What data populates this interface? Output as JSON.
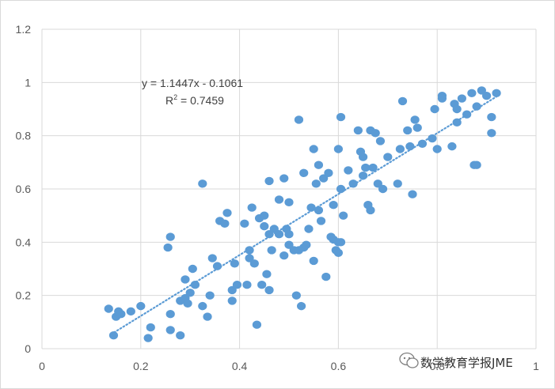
{
  "chart_data": {
    "type": "scatter",
    "title": "",
    "xlabel": "",
    "ylabel": "",
    "xlim": [
      0,
      1
    ],
    "ylim": [
      0,
      1.2
    ],
    "x_ticks": [
      "0",
      "0.2",
      "0.4",
      "0.6",
      "0.8",
      "1"
    ],
    "y_ticks": [
      "0",
      "0.2",
      "0.4",
      "0.6",
      "0.8",
      "1",
      "1.2"
    ],
    "grid": "horizontal and vertical major gridlines",
    "legend": "none",
    "marker_color": "#5b9bd5",
    "trendline": {
      "type": "linear",
      "style": "dotted",
      "color": "#5b9bd5",
      "slope": 1.1447,
      "intercept": -0.1061,
      "x_range": [
        0.14,
        0.92
      ]
    },
    "annotations": {
      "equation": "y = 1.1447x - 0.1061",
      "r_squared_prefix": "R",
      "r_squared_power": "2",
      "r_squared_value": " = 0.7459"
    },
    "points": [
      [
        0.135,
        0.15
      ],
      [
        0.145,
        0.05
      ],
      [
        0.15,
        0.12
      ],
      [
        0.155,
        0.14
      ],
      [
        0.16,
        0.13
      ],
      [
        0.18,
        0.14
      ],
      [
        0.2,
        0.16
      ],
      [
        0.215,
        0.04
      ],
      [
        0.22,
        0.08
      ],
      [
        0.255,
        0.38
      ],
      [
        0.26,
        0.42
      ],
      [
        0.26,
        0.13
      ],
      [
        0.26,
        0.07
      ],
      [
        0.28,
        0.18
      ],
      [
        0.28,
        0.05
      ],
      [
        0.29,
        0.26
      ],
      [
        0.29,
        0.19
      ],
      [
        0.295,
        0.17
      ],
      [
        0.3,
        0.21
      ],
      [
        0.305,
        0.3
      ],
      [
        0.31,
        0.24
      ],
      [
        0.325,
        0.62
      ],
      [
        0.325,
        0.16
      ],
      [
        0.335,
        0.12
      ],
      [
        0.34,
        0.2
      ],
      [
        0.345,
        0.34
      ],
      [
        0.355,
        0.31
      ],
      [
        0.36,
        0.48
      ],
      [
        0.37,
        0.47
      ],
      [
        0.375,
        0.51
      ],
      [
        0.385,
        0.22
      ],
      [
        0.385,
        0.18
      ],
      [
        0.39,
        0.32
      ],
      [
        0.395,
        0.24
      ],
      [
        0.41,
        0.47
      ],
      [
        0.415,
        0.24
      ],
      [
        0.42,
        0.37
      ],
      [
        0.42,
        0.34
      ],
      [
        0.425,
        0.53
      ],
      [
        0.43,
        0.32
      ],
      [
        0.435,
        0.09
      ],
      [
        0.44,
        0.49
      ],
      [
        0.445,
        0.24
      ],
      [
        0.45,
        0.5
      ],
      [
        0.45,
        0.46
      ],
      [
        0.455,
        0.28
      ],
      [
        0.46,
        0.63
      ],
      [
        0.46,
        0.43
      ],
      [
        0.46,
        0.22
      ],
      [
        0.465,
        0.37
      ],
      [
        0.47,
        0.45
      ],
      [
        0.48,
        0.56
      ],
      [
        0.48,
        0.43
      ],
      [
        0.49,
        0.35
      ],
      [
        0.49,
        0.64
      ],
      [
        0.495,
        0.45
      ],
      [
        0.5,
        0.43
      ],
      [
        0.5,
        0.55
      ],
      [
        0.5,
        0.39
      ],
      [
        0.51,
        0.37
      ],
      [
        0.515,
        0.2
      ],
      [
        0.52,
        0.86
      ],
      [
        0.52,
        0.37
      ],
      [
        0.525,
        0.16
      ],
      [
        0.53,
        0.66
      ],
      [
        0.53,
        0.38
      ],
      [
        0.535,
        0.39
      ],
      [
        0.54,
        0.45
      ],
      [
        0.545,
        0.53
      ],
      [
        0.55,
        0.75
      ],
      [
        0.55,
        0.33
      ],
      [
        0.555,
        0.62
      ],
      [
        0.56,
        0.69
      ],
      [
        0.56,
        0.52
      ],
      [
        0.565,
        0.48
      ],
      [
        0.57,
        0.64
      ],
      [
        0.575,
        0.27
      ],
      [
        0.58,
        0.66
      ],
      [
        0.585,
        0.42
      ],
      [
        0.59,
        0.41
      ],
      [
        0.59,
        0.54
      ],
      [
        0.595,
        0.37
      ],
      [
        0.6,
        0.4
      ],
      [
        0.6,
        0.75
      ],
      [
        0.6,
        0.36
      ],
      [
        0.605,
        0.87
      ],
      [
        0.605,
        0.4
      ],
      [
        0.605,
        0.6
      ],
      [
        0.61,
        0.5
      ],
      [
        0.62,
        0.67
      ],
      [
        0.63,
        0.62
      ],
      [
        0.64,
        0.82
      ],
      [
        0.645,
        0.74
      ],
      [
        0.65,
        0.72
      ],
      [
        0.65,
        0.65
      ],
      [
        0.655,
        0.68
      ],
      [
        0.66,
        0.54
      ],
      [
        0.665,
        0.82
      ],
      [
        0.665,
        0.52
      ],
      [
        0.67,
        0.68
      ],
      [
        0.675,
        0.81
      ],
      [
        0.68,
        0.62
      ],
      [
        0.685,
        0.78
      ],
      [
        0.69,
        0.6
      ],
      [
        0.7,
        0.72
      ],
      [
        0.72,
        0.62
      ],
      [
        0.725,
        0.75
      ],
      [
        0.73,
        0.93
      ],
      [
        0.74,
        0.82
      ],
      [
        0.745,
        0.76
      ],
      [
        0.75,
        0.58
      ],
      [
        0.755,
        0.86
      ],
      [
        0.76,
        0.83
      ],
      [
        0.77,
        0.77
      ],
      [
        0.79,
        0.79
      ],
      [
        0.795,
        0.9
      ],
      [
        0.8,
        0.75
      ],
      [
        0.81,
        0.95
      ],
      [
        0.81,
        0.94
      ],
      [
        0.83,
        0.76
      ],
      [
        0.835,
        0.92
      ],
      [
        0.84,
        0.85
      ],
      [
        0.84,
        0.9
      ],
      [
        0.85,
        0.94
      ],
      [
        0.86,
        0.88
      ],
      [
        0.87,
        0.96
      ],
      [
        0.875,
        0.69
      ],
      [
        0.88,
        0.91
      ],
      [
        0.88,
        0.69
      ],
      [
        0.89,
        0.97
      ],
      [
        0.9,
        0.95
      ],
      [
        0.91,
        0.87
      ],
      [
        0.91,
        0.81
      ],
      [
        0.92,
        0.96
      ]
    ]
  },
  "watermark": {
    "icon": "wechat-icon",
    "text": "数学教育学报JME"
  }
}
